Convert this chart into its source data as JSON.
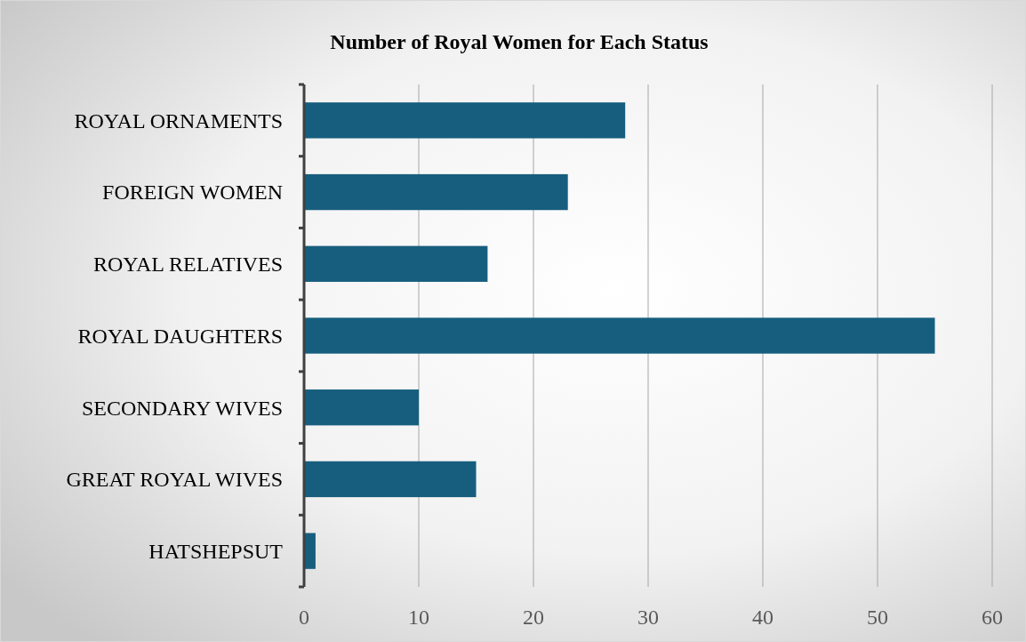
{
  "chart_data": {
    "type": "bar",
    "orientation": "horizontal",
    "title": "Number of Royal Women for Each Status",
    "categories": [
      "ROYAL ORNAMENTS",
      "FOREIGN WOMEN",
      "ROYAL RELATIVES",
      "ROYAL DAUGHTERS",
      "SECONDARY WIVES",
      "GREAT ROYAL WIVES",
      "HATSHEPSUT"
    ],
    "values": [
      28,
      23,
      16,
      55,
      10,
      15,
      1
    ],
    "color": "#175e7e",
    "xlim": [
      0,
      60
    ],
    "xticks": [
      0,
      10,
      20,
      30,
      40,
      50,
      60
    ],
    "grid": "x"
  }
}
